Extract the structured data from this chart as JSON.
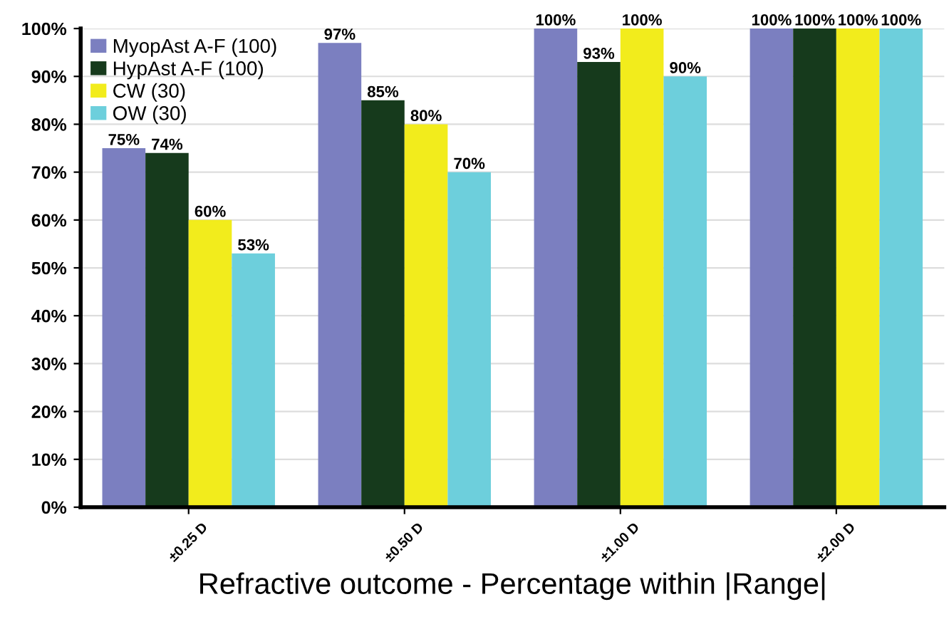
{
  "chart_data": {
    "type": "bar",
    "xlabel": "Refractive outcome - Percentage within |Range|",
    "categories": [
      "±0.25 D",
      "±0.50 D",
      "±1.00 D",
      "±2.00 D"
    ],
    "series": [
      {
        "name": "MyopAst A-F (100)",
        "color": "#7b7fc0",
        "values": [
          75,
          97,
          100,
          100
        ],
        "value_labels": [
          "75%",
          "97%",
          "100%",
          "100%"
        ]
      },
      {
        "name": "HypAst A-F (100)",
        "color": "#163a1c",
        "values": [
          74,
          85,
          93,
          100
        ],
        "value_labels": [
          "74%",
          "85%",
          "93%",
          "100%"
        ]
      },
      {
        "name": "CW (30)",
        "color": "#f2ec1c",
        "values": [
          60,
          80,
          100,
          100
        ],
        "value_labels": [
          "60%",
          "80%",
          "100%",
          "100%"
        ]
      },
      {
        "name": "OW (30)",
        "color": "#6dcfdc",
        "values": [
          53,
          70,
          90,
          100
        ],
        "value_labels": [
          "53%",
          "70%",
          "90%",
          "100%"
        ]
      }
    ],
    "ylim": [
      0,
      100
    ],
    "yticks": [
      {
        "value": 0,
        "label": "0%"
      },
      {
        "value": 10,
        "label": "10%"
      },
      {
        "value": 20,
        "label": "20%"
      },
      {
        "value": 30,
        "label": "30%"
      },
      {
        "value": 40,
        "label": "40%"
      },
      {
        "value": 50,
        "label": "50%"
      },
      {
        "value": 60,
        "label": "60%"
      },
      {
        "value": 70,
        "label": "70%"
      },
      {
        "value": 80,
        "label": "80%"
      },
      {
        "value": 90,
        "label": "90%"
      },
      {
        "value": 100,
        "label": "100%"
      }
    ],
    "grid": "y",
    "legend": "top left"
  }
}
